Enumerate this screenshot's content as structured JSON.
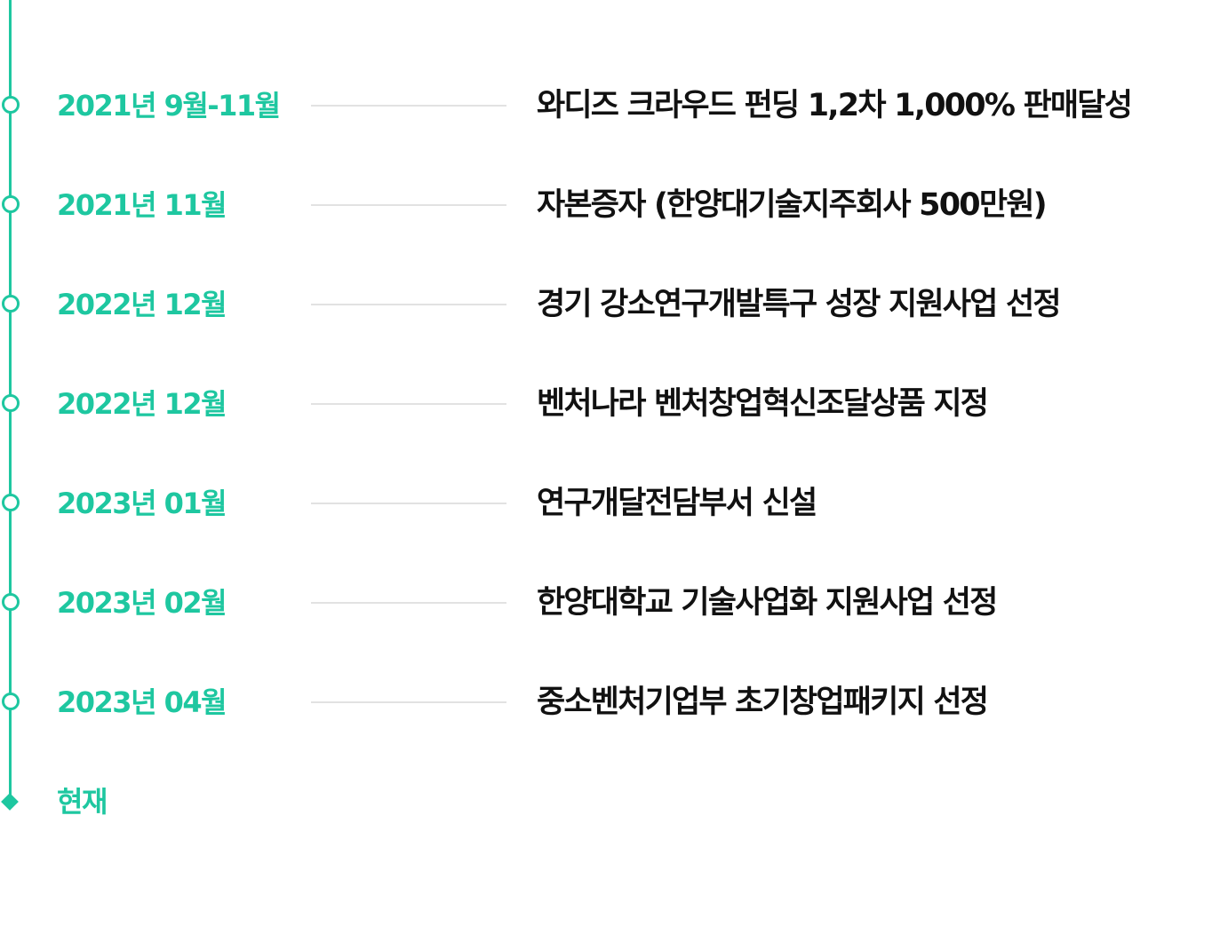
{
  "accent_color": "#1ec7a0",
  "timeline": {
    "entries": [
      {
        "date": "2021년 9월-11월",
        "event": "와디즈 크라우드 펀딩 1,2차 1,000% 판매달성"
      },
      {
        "date": "2021년 11월",
        "event": "자본증자 (한양대기술지주회사 500만원)"
      },
      {
        "date": "2022년 12월",
        "event": "경기 강소연구개발특구 성장 지원사업 선정"
      },
      {
        "date": "2022년 12월",
        "event": "벤처나라 벤처창업혁신조달상품 지정"
      },
      {
        "date": "2023년 01월",
        "event": "연구개달전담부서 신설"
      },
      {
        "date": "2023년 02월",
        "event": "한양대학교 기술사업화 지원사업 선정"
      },
      {
        "date": "2023년 04월",
        "event": "중소벤처기업부 초기창업패키지 선정"
      }
    ],
    "current": {
      "label": "현재"
    }
  }
}
